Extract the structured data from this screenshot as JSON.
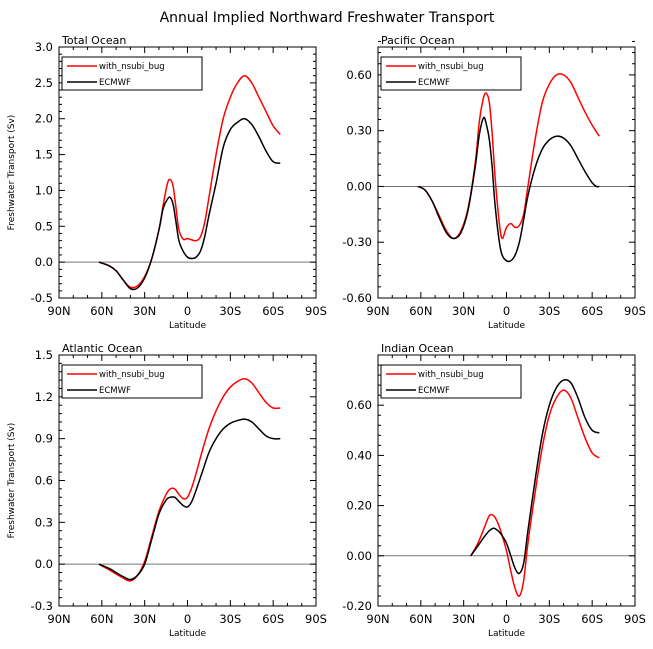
{
  "figure_title": "Annual Implied Northward Freshwater Transport",
  "chart_data": [
    {
      "type": "line",
      "title": "Total Ocean",
      "xlabel": "Latitude",
      "ylabel": "Freshwater Transport (Sv)",
      "x_ticks": [
        -90,
        -60,
        -30,
        0,
        30,
        60,
        90
      ],
      "x_tick_labels": [
        "90N",
        "60N",
        "30N",
        "0",
        "30S",
        "60S",
        "90S"
      ],
      "xlim": [
        -90,
        90
      ],
      "ylim": [
        -0.5,
        3.0
      ],
      "y_ticks": [
        -0.5,
        0.0,
        0.5,
        1.0,
        1.5,
        2.0,
        2.5,
        3.0
      ],
      "y_tick_labels": [
        "-0.5",
        "0.0",
        "0.5",
        "1.0",
        "1.5",
        "2.0",
        "2.5",
        "3.0"
      ],
      "zero_line": true,
      "series": [
        {
          "name": "with_nsubi_bug",
          "color": "#ff0000",
          "x": [
            -62,
            -55,
            -50,
            -45,
            -40,
            -35,
            -30,
            -25,
            -20,
            -17,
            -14,
            -12,
            -10,
            -8,
            -6,
            -3,
            0,
            3,
            6,
            9,
            12,
            15,
            20,
            25,
            30,
            35,
            40,
            45,
            50,
            55,
            60,
            65
          ],
          "y": [
            0.0,
            -0.05,
            -0.12,
            -0.25,
            -0.35,
            -0.33,
            -0.2,
            0.05,
            0.45,
            0.8,
            1.1,
            1.15,
            1.05,
            0.75,
            0.45,
            0.32,
            0.33,
            0.31,
            0.3,
            0.35,
            0.55,
            0.9,
            1.5,
            2.0,
            2.3,
            2.5,
            2.6,
            2.5,
            2.3,
            2.1,
            1.9,
            1.78
          ]
        },
        {
          "name": "ECMWF",
          "color": "#000000",
          "x": [
            -62,
            -55,
            -50,
            -45,
            -40,
            -35,
            -30,
            -25,
            -20,
            -17,
            -14,
            -12,
            -10,
            -8,
            -6,
            -3,
            0,
            3,
            6,
            9,
            12,
            15,
            20,
            25,
            30,
            35,
            40,
            45,
            50,
            55,
            60,
            65
          ],
          "y": [
            0.0,
            -0.05,
            -0.12,
            -0.25,
            -0.37,
            -0.36,
            -0.22,
            0.05,
            0.45,
            0.75,
            0.88,
            0.9,
            0.8,
            0.55,
            0.3,
            0.15,
            0.07,
            0.05,
            0.07,
            0.15,
            0.35,
            0.65,
            1.1,
            1.6,
            1.85,
            1.95,
            2.0,
            1.92,
            1.75,
            1.55,
            1.4,
            1.38
          ]
        }
      ]
    },
    {
      "type": "line",
      "title": "Pacific Ocean",
      "xlabel": "Latitude",
      "ylabel": "",
      "x_ticks": [
        -90,
        -60,
        -30,
        0,
        30,
        60,
        90
      ],
      "x_tick_labels": [
        "90N",
        "60N",
        "30N",
        "0",
        "30S",
        "60S",
        "90S"
      ],
      "xlim": [
        -90,
        90
      ],
      "ylim": [
        -0.6,
        0.75
      ],
      "y_ticks": [
        -0.6,
        -0.3,
        0.0,
        0.3,
        0.6
      ],
      "y_tick_labels": [
        "-0.60",
        "-0.30",
        "0.00",
        "0.30",
        "0.60"
      ],
      "zero_line": true,
      "series": [
        {
          "name": "with_nsubi_bug",
          "color": "#ff0000",
          "x": [
            -62,
            -57,
            -52,
            -47,
            -42,
            -37,
            -32,
            -27,
            -22,
            -19,
            -16,
            -14,
            -12,
            -10,
            -8,
            -5,
            -3,
            0,
            3,
            6,
            9,
            12,
            15,
            20,
            25,
            30,
            35,
            40,
            45,
            50,
            55,
            60,
            65
          ],
          "y": [
            0.0,
            -0.02,
            -0.08,
            -0.16,
            -0.24,
            -0.28,
            -0.24,
            -0.12,
            0.12,
            0.35,
            0.48,
            0.5,
            0.45,
            0.28,
            0.05,
            -0.2,
            -0.28,
            -0.22,
            -0.2,
            -0.22,
            -0.21,
            -0.15,
            0.0,
            0.25,
            0.45,
            0.55,
            0.6,
            0.6,
            0.56,
            0.48,
            0.4,
            0.33,
            0.27
          ]
        },
        {
          "name": "ECMWF",
          "color": "#000000",
          "x": [
            -62,
            -57,
            -52,
            -47,
            -42,
            -37,
            -32,
            -27,
            -22,
            -19,
            -16,
            -14,
            -12,
            -10,
            -8,
            -5,
            -3,
            0,
            3,
            6,
            9,
            12,
            15,
            20,
            25,
            30,
            35,
            40,
            45,
            50,
            55,
            60,
            63,
            65
          ],
          "y": [
            0.0,
            -0.02,
            -0.08,
            -0.17,
            -0.25,
            -0.28,
            -0.25,
            -0.13,
            0.1,
            0.28,
            0.37,
            0.33,
            0.25,
            0.1,
            -0.1,
            -0.3,
            -0.37,
            -0.4,
            -0.4,
            -0.37,
            -0.3,
            -0.18,
            -0.05,
            0.1,
            0.2,
            0.25,
            0.27,
            0.26,
            0.22,
            0.15,
            0.08,
            0.02,
            0.0,
            0.0
          ]
        }
      ]
    },
    {
      "type": "line",
      "title": "Atlantic Ocean",
      "xlabel": "Latitude",
      "ylabel": "Freshwater Transport (Sv)",
      "x_ticks": [
        -90,
        -60,
        -30,
        0,
        30,
        60,
        90
      ],
      "x_tick_labels": [
        "90N",
        "60N",
        "30N",
        "0",
        "30S",
        "60S",
        "90S"
      ],
      "xlim": [
        -90,
        90
      ],
      "ylim": [
        -0.3,
        1.5
      ],
      "y_ticks": [
        -0.3,
        0.0,
        0.3,
        0.6,
        0.9,
        1.2,
        1.5
      ],
      "y_tick_labels": [
        "-0.3",
        "0.0",
        "0.3",
        "0.6",
        "0.9",
        "1.2",
        "1.5"
      ],
      "zero_line": true,
      "series": [
        {
          "name": "with_nsubi_bug",
          "color": "#ff0000",
          "x": [
            -62,
            -55,
            -50,
            -45,
            -40,
            -35,
            -30,
            -25,
            -20,
            -15,
            -12,
            -9,
            -6,
            -3,
            0,
            3,
            6,
            10,
            15,
            20,
            25,
            30,
            35,
            40,
            45,
            50,
            55,
            60,
            65
          ],
          "y": [
            0.0,
            -0.04,
            -0.07,
            -0.1,
            -0.12,
            -0.08,
            0.02,
            0.2,
            0.38,
            0.5,
            0.54,
            0.54,
            0.5,
            0.47,
            0.48,
            0.55,
            0.65,
            0.8,
            0.97,
            1.1,
            1.2,
            1.27,
            1.31,
            1.33,
            1.3,
            1.23,
            1.16,
            1.12,
            1.12
          ]
        },
        {
          "name": "ECMWF",
          "color": "#000000",
          "x": [
            -62,
            -55,
            -50,
            -45,
            -40,
            -35,
            -30,
            -25,
            -20,
            -15,
            -12,
            -9,
            -6,
            -3,
            0,
            3,
            6,
            10,
            15,
            20,
            25,
            30,
            35,
            40,
            45,
            50,
            55,
            60,
            65
          ],
          "y": [
            0.0,
            -0.03,
            -0.06,
            -0.09,
            -0.11,
            -0.08,
            0.0,
            0.18,
            0.36,
            0.46,
            0.48,
            0.48,
            0.45,
            0.42,
            0.41,
            0.45,
            0.53,
            0.65,
            0.8,
            0.9,
            0.97,
            1.01,
            1.03,
            1.04,
            1.02,
            0.97,
            0.92,
            0.9,
            0.9
          ]
        }
      ]
    },
    {
      "type": "line",
      "title": "Indian Ocean",
      "xlabel": "Latitude",
      "ylabel": "",
      "x_ticks": [
        -90,
        -60,
        -30,
        0,
        30,
        60,
        90
      ],
      "x_tick_labels": [
        "90N",
        "60N",
        "30N",
        "0",
        "30S",
        "60S",
        "90S"
      ],
      "xlim": [
        -90,
        90
      ],
      "ylim": [
        -0.2,
        0.8
      ],
      "y_ticks": [
        -0.2,
        0.0,
        0.2,
        0.4,
        0.6
      ],
      "y_tick_labels": [
        "-0.20",
        "0.00",
        "0.20",
        "0.40",
        "0.60"
      ],
      "zero_line": true,
      "series": [
        {
          "name": "with_nsubi_bug",
          "color": "#ff0000",
          "x": [
            -25,
            -20,
            -15,
            -12,
            -9,
            -6,
            -3,
            0,
            3,
            6,
            9,
            12,
            15,
            20,
            25,
            30,
            35,
            40,
            45,
            50,
            55,
            60,
            65
          ],
          "y": [
            0.0,
            0.05,
            0.12,
            0.16,
            0.16,
            0.13,
            0.08,
            0.02,
            -0.06,
            -0.13,
            -0.16,
            -0.1,
            0.05,
            0.25,
            0.43,
            0.56,
            0.63,
            0.66,
            0.63,
            0.55,
            0.47,
            0.41,
            0.39
          ]
        },
        {
          "name": "ECMWF",
          "color": "#000000",
          "x": [
            -25,
            -20,
            -15,
            -12,
            -9,
            -6,
            -3,
            0,
            3,
            6,
            9,
            12,
            15,
            20,
            25,
            30,
            35,
            40,
            45,
            50,
            55,
            60,
            65
          ],
          "y": [
            0.0,
            0.04,
            0.08,
            0.1,
            0.11,
            0.1,
            0.08,
            0.05,
            0.0,
            -0.05,
            -0.07,
            -0.03,
            0.1,
            0.3,
            0.48,
            0.6,
            0.67,
            0.7,
            0.69,
            0.63,
            0.55,
            0.5,
            0.49
          ]
        }
      ]
    }
  ]
}
